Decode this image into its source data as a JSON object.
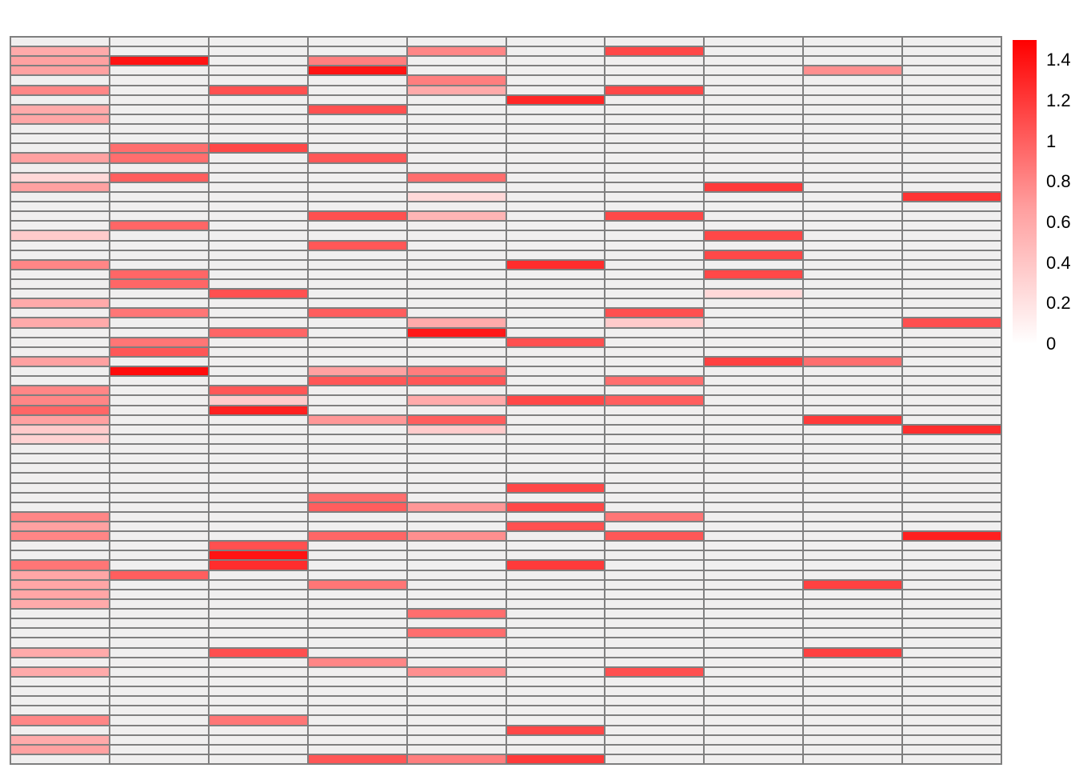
{
  "chart_data": {
    "type": "heatmap",
    "title": "",
    "xlabel": "",
    "ylabel": "",
    "n_rows": 75,
    "n_cols": 10,
    "grid_line_color": "#7f7f7f",
    "color_scale": {
      "high": "#ff0000",
      "low": "#ffffff",
      "zero_cell_color": "#f0efef",
      "scale_max": 1.45,
      "gamma": 0.7
    },
    "colorbar": {
      "position": "right",
      "top_value": 1.5,
      "bottom_value": 0,
      "ticks": [
        "1.4",
        "1.2",
        "1",
        "0.8",
        "0.6",
        "0.4",
        "0.2",
        "0"
      ],
      "tick_values": [
        1.4,
        1.2,
        1.0,
        0.8,
        0.6,
        0.4,
        0.2,
        0
      ]
    },
    "values": [
      [
        0,
        0,
        0,
        0,
        0,
        0,
        0,
        0,
        0,
        0
      ],
      [
        0.3,
        0,
        0,
        0,
        0.5,
        0,
        0.9,
        0,
        0,
        0
      ],
      [
        0.35,
        1.3,
        0,
        0.55,
        0,
        0,
        0,
        0,
        0,
        0
      ],
      [
        0.35,
        0,
        0,
        1.3,
        0,
        0,
        0,
        0,
        0.45,
        0
      ],
      [
        0,
        0,
        0,
        0,
        0.55,
        0,
        0,
        0,
        0,
        0
      ],
      [
        0.5,
        0,
        0.85,
        0,
        0.3,
        0,
        0.9,
        0,
        0,
        0
      ],
      [
        0,
        0,
        0,
        0,
        0,
        1.15,
        0,
        0,
        0,
        0
      ],
      [
        0.3,
        0,
        0,
        0.85,
        0,
        0,
        0,
        0,
        0,
        0
      ],
      [
        0.32,
        0,
        0,
        0,
        0,
        0,
        0,
        0,
        0,
        0
      ],
      [
        0,
        0,
        0,
        0,
        0,
        0,
        0,
        0,
        0,
        0
      ],
      [
        0,
        0,
        0,
        0,
        0,
        0,
        0,
        0,
        0,
        0
      ],
      [
        0,
        0.65,
        0.9,
        0,
        0,
        0,
        0,
        0,
        0,
        0
      ],
      [
        0.35,
        0.65,
        0,
        0.8,
        0,
        0,
        0,
        0,
        0,
        0
      ],
      [
        0,
        0,
        0,
        0,
        0,
        0,
        0,
        0,
        0,
        0
      ],
      [
        0.1,
        0.75,
        0,
        0,
        0.65,
        0,
        0,
        0,
        0,
        0
      ],
      [
        0.35,
        0,
        0,
        0,
        0,
        0,
        0,
        1.0,
        0,
        0
      ],
      [
        0,
        0,
        0,
        0,
        0.1,
        0,
        0,
        0,
        0,
        1.05
      ],
      [
        0,
        0,
        0,
        0,
        0,
        0,
        0,
        0,
        0,
        0
      ],
      [
        0,
        0,
        0,
        0.85,
        0.25,
        0,
        0.9,
        0,
        0,
        0
      ],
      [
        0,
        0.7,
        0,
        0,
        0,
        0,
        0,
        0,
        0,
        0
      ],
      [
        0.15,
        0,
        0,
        0,
        0,
        0,
        0,
        0.9,
        0,
        0
      ],
      [
        0,
        0,
        0,
        0.8,
        0,
        0,
        0,
        0,
        0,
        0
      ],
      [
        0,
        0,
        0,
        0,
        0,
        0,
        0,
        0.9,
        0,
        0
      ],
      [
        0.5,
        0,
        0,
        0,
        0,
        1.1,
        0,
        0,
        0,
        0
      ],
      [
        0,
        0.7,
        0,
        0,
        0,
        0,
        0,
        0.9,
        0,
        0
      ],
      [
        0,
        0.7,
        0,
        0,
        0,
        0,
        0,
        0,
        0,
        0
      ],
      [
        0,
        0,
        0.85,
        0,
        0,
        0,
        0,
        0.1,
        0,
        0
      ],
      [
        0.3,
        0,
        0,
        0,
        0,
        0,
        0,
        0,
        0,
        0
      ],
      [
        0,
        0.6,
        0,
        0.75,
        0,
        0,
        0.85,
        0,
        0,
        0
      ],
      [
        0.3,
        0,
        0,
        0,
        0.3,
        0,
        0.15,
        0,
        0,
        0.85
      ],
      [
        0,
        0,
        0.7,
        0,
        1.25,
        0,
        0,
        0,
        0,
        0
      ],
      [
        0,
        0.6,
        0,
        0,
        0,
        0.85,
        0,
        0,
        0,
        0
      ],
      [
        0,
        0.8,
        0,
        0,
        0,
        0,
        0,
        0,
        0,
        0
      ],
      [
        0.35,
        0,
        0,
        0,
        0,
        0,
        0,
        0.95,
        0.65,
        0
      ],
      [
        0,
        1.35,
        0,
        0.35,
        0.55,
        0,
        0,
        0,
        0,
        0
      ],
      [
        0,
        0,
        0,
        0.8,
        0.8,
        0,
        0.65,
        0,
        0,
        0
      ],
      [
        0.5,
        0,
        0.8,
        0,
        0,
        0,
        0,
        0,
        0,
        0
      ],
      [
        0.5,
        0,
        0.15,
        0,
        0.3,
        0.9,
        0.75,
        0,
        0,
        0
      ],
      [
        0.7,
        0,
        1.2,
        0,
        0,
        0,
        0,
        0,
        0,
        0
      ],
      [
        0.35,
        0,
        0,
        0.4,
        0.75,
        0,
        0,
        0,
        1.0,
        0
      ],
      [
        0.15,
        0,
        0,
        0,
        0.15,
        0,
        0,
        0,
        0,
        1.1
      ],
      [
        0.12,
        0,
        0,
        0,
        0,
        0,
        0,
        0,
        0,
        0
      ],
      [
        0,
        0,
        0,
        0,
        0,
        0,
        0,
        0,
        0,
        0
      ],
      [
        0,
        0,
        0,
        0,
        0,
        0,
        0,
        0,
        0,
        0
      ],
      [
        0,
        0,
        0,
        0,
        0,
        0,
        0,
        0,
        0,
        0
      ],
      [
        0,
        0,
        0,
        0,
        0,
        0,
        0,
        0,
        0,
        0
      ],
      [
        0,
        0,
        0,
        0,
        0,
        0.9,
        0,
        0,
        0,
        0
      ],
      [
        0,
        0,
        0,
        0.65,
        0,
        0,
        0,
        0,
        0,
        0
      ],
      [
        0,
        0,
        0,
        0.75,
        0.4,
        0.9,
        0,
        0,
        0,
        0
      ],
      [
        0.5,
        0,
        0,
        0,
        0,
        0,
        0.6,
        0,
        0,
        0
      ],
      [
        0.35,
        0,
        0,
        0,
        0,
        0.85,
        0,
        0,
        0,
        0
      ],
      [
        0.5,
        0,
        0,
        0.7,
        0.45,
        0,
        0.8,
        0,
        0,
        1.2
      ],
      [
        0,
        0,
        0.85,
        0,
        0,
        0,
        0,
        0,
        0,
        0
      ],
      [
        0,
        0,
        1.3,
        0,
        0,
        0,
        0,
        0,
        0,
        0
      ],
      [
        0.6,
        0,
        1.1,
        0,
        0,
        1.0,
        0,
        0,
        0,
        0
      ],
      [
        0.32,
        0.75,
        0,
        0,
        0,
        0,
        0,
        0,
        0,
        0
      ],
      [
        0.32,
        0,
        0,
        0.6,
        0,
        0,
        0,
        0,
        0.95,
        0
      ],
      [
        0.32,
        0,
        0,
        0,
        0,
        0,
        0,
        0,
        0,
        0
      ],
      [
        0.3,
        0,
        0,
        0,
        0,
        0,
        0,
        0,
        0,
        0
      ],
      [
        0,
        0,
        0,
        0,
        0.65,
        0,
        0,
        0,
        0,
        0
      ],
      [
        0,
        0,
        0,
        0,
        0,
        0,
        0,
        0,
        0,
        0
      ],
      [
        0,
        0,
        0,
        0,
        0.65,
        0,
        0,
        0,
        0,
        0
      ],
      [
        0,
        0,
        0,
        0,
        0,
        0,
        0,
        0,
        0,
        0
      ],
      [
        0.3,
        0,
        0.85,
        0,
        0,
        0,
        0,
        0,
        0.95,
        0
      ],
      [
        0,
        0,
        0,
        0.5,
        0,
        0,
        0,
        0,
        0,
        0
      ],
      [
        0.3,
        0,
        0,
        0,
        0.45,
        0,
        0.85,
        0,
        0,
        0
      ],
      [
        0,
        0,
        0,
        0,
        0,
        0,
        0,
        0,
        0,
        0
      ],
      [
        0,
        0,
        0,
        0,
        0,
        0,
        0,
        0,
        0,
        0
      ],
      [
        0,
        0,
        0,
        0,
        0,
        0,
        0,
        0,
        0,
        0
      ],
      [
        0,
        0,
        0,
        0,
        0,
        0,
        0,
        0,
        0,
        0
      ],
      [
        0.5,
        0,
        0.6,
        0,
        0,
        0,
        0,
        0,
        0,
        0
      ],
      [
        0,
        0,
        0,
        0,
        0,
        0.9,
        0,
        0,
        0,
        0
      ],
      [
        0.3,
        0,
        0,
        0,
        0,
        0,
        0,
        0,
        0,
        0
      ],
      [
        0.35,
        0,
        0,
        0,
        0,
        0,
        0,
        0,
        0,
        0
      ],
      [
        0,
        0,
        0,
        0.8,
        0.55,
        1.0,
        0,
        0,
        0,
        0
      ]
    ]
  }
}
